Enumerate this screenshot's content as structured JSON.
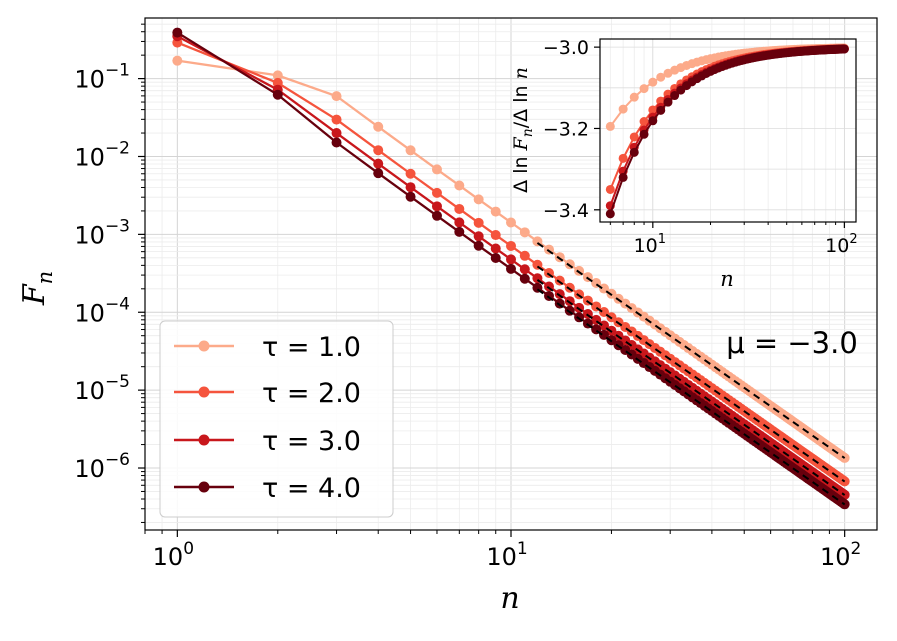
{
  "chart_data": [
    {
      "type": "line",
      "xscale": "log",
      "yscale": "log",
      "xlabel": "n",
      "ylabel": "F_n",
      "xlim": [
        0.8,
        125
      ],
      "ylim": [
        1.6e-07,
        0.6
      ],
      "x_ticks": [
        {
          "value": 1,
          "base": "10",
          "exp": "0"
        },
        {
          "value": 10,
          "base": "10",
          "exp": "1"
        },
        {
          "value": 100,
          "base": "10",
          "exp": "2"
        }
      ],
      "y_ticks": [
        {
          "value": 1e-06,
          "base": "10",
          "exp": "−6"
        },
        {
          "value": 1e-05,
          "base": "10",
          "exp": "−5"
        },
        {
          "value": 0.0001,
          "base": "10",
          "exp": "−4"
        },
        {
          "value": 0.001,
          "base": "10",
          "exp": "−3"
        },
        {
          "value": 0.01,
          "base": "10",
          "exp": "−2"
        },
        {
          "value": 0.1,
          "base": "10",
          "exp": "−1"
        }
      ],
      "grid": true,
      "legend_position": "lower-left",
      "annotation": "μ = −3.0",
      "n_max": 100,
      "series": [
        {
          "name": "τ = 1.0",
          "color": "#fcaa8a",
          "f1": 0.17,
          "f2": 0.11,
          "amp": 0.00134,
          "tail_color": "#000000"
        },
        {
          "name": "τ = 2.0",
          "color": "#f5543d",
          "f1": 0.29,
          "f2": 0.088,
          "amp": 0.00067,
          "tail_color": "#000000"
        },
        {
          "name": "τ = 3.0",
          "color": "#c8171c",
          "f1": 0.35,
          "f2": 0.072,
          "amp": 0.00045,
          "tail_color": "#000000"
        },
        {
          "name": "τ = 4.0",
          "color": "#67000d",
          "f1": 0.39,
          "f2": 0.062,
          "amp": 0.00034,
          "tail_color": "#000000"
        }
      ],
      "fit_lines": {
        "style": "dashed",
        "color": "#000000",
        "x_range": [
          12,
          100
        ],
        "slope": -3.0
      }
    },
    {
      "type": "line",
      "role": "inset",
      "xscale": "log",
      "xlabel": "n",
      "ylabel": "Δ ln F_n / Δ ln n",
      "xlim": [
        5.3,
        115
      ],
      "ylim": [
        -3.43,
        -2.98
      ],
      "x_ticks": [
        {
          "value": 10,
          "base": "10",
          "exp": "1"
        },
        {
          "value": 100,
          "base": "10",
          "exp": "2"
        }
      ],
      "y_ticks": [
        {
          "value": -3.0,
          "label": "−3.0"
        },
        {
          "value": -3.2,
          "label": "−3.2"
        },
        {
          "value": -3.4,
          "label": "−3.4"
        }
      ],
      "grid": true,
      "x_start": 6,
      "series": [
        {
          "name": "τ = 1.0",
          "y_at_start": -3.195
        },
        {
          "name": "τ = 2.0",
          "y_at_start": -3.35
        },
        {
          "name": "τ = 3.0",
          "y_at_start": -3.39
        },
        {
          "name": "τ = 4.0",
          "y_at_start": -3.41
        }
      ]
    }
  ]
}
